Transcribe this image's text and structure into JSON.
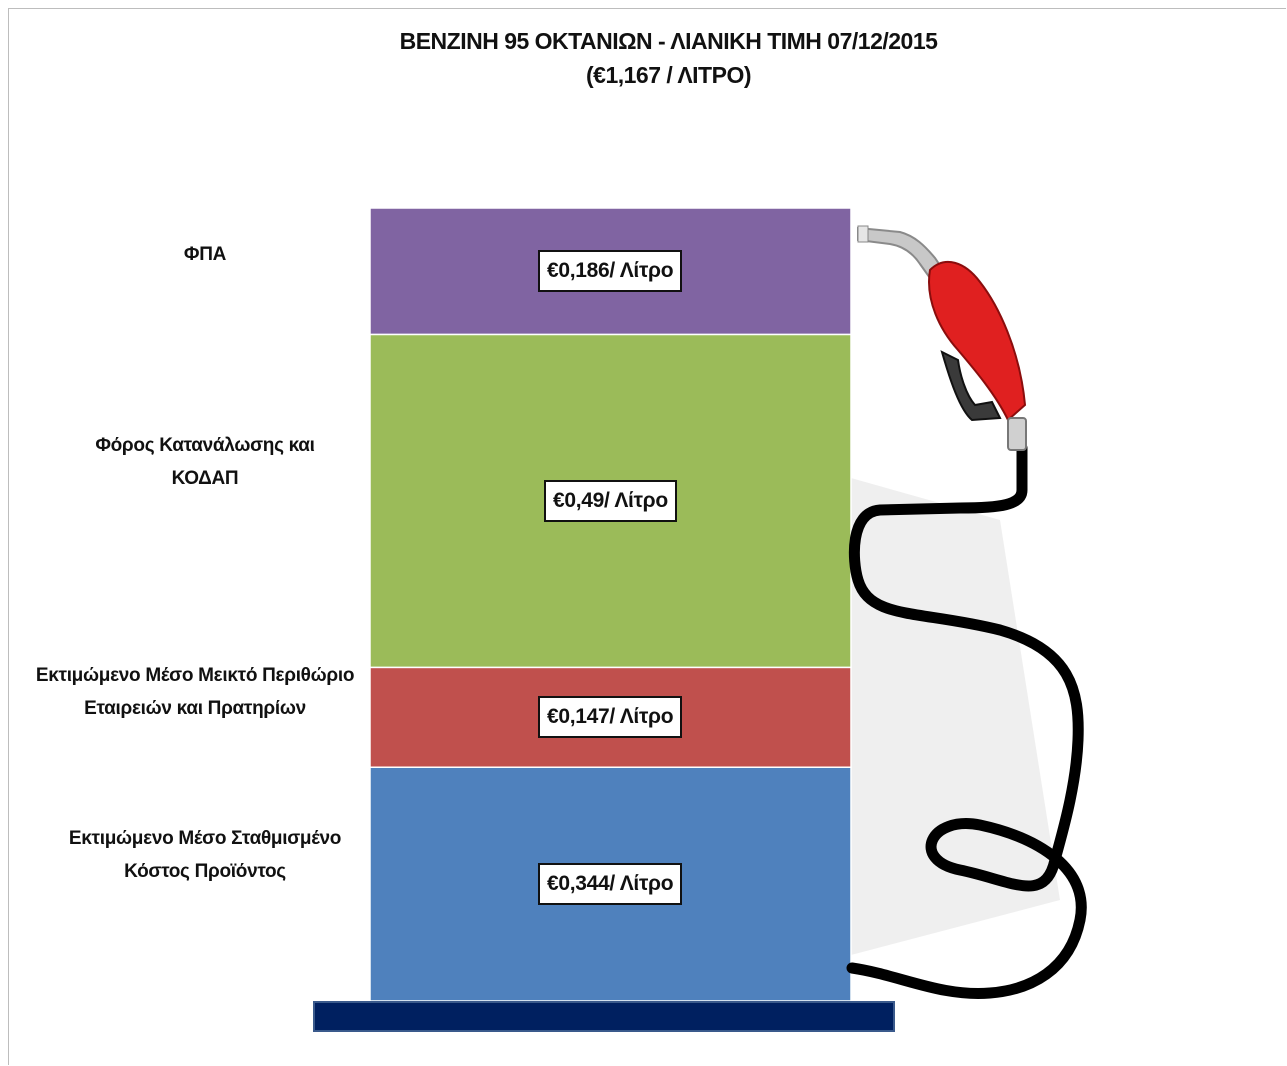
{
  "chart_data": {
    "type": "bar",
    "stacked": true,
    "title": "ΒΕΝΖΙΝΗ 95 ΟΚΤΑΝΙΩΝ - ΛΙΑΝΙΚΗ ΤΙΜΗ 07/12/2015",
    "subtitle": "(€1,167 / ΛΙΤΡΟ)",
    "total": 1.167,
    "segments": [
      {
        "key": "cost",
        "label_lines": [
          "Εκτιμώμενο Μέσο Σταθμισμένο",
          "Κόστος Προϊόντος"
        ],
        "value": 0.344,
        "value_label": "€0,344/ Λίτρο",
        "color": "#4f81bd"
      },
      {
        "key": "margin",
        "label_lines": [
          "Εκτιμώμενο Μέσο Μεικτό Περιθώριο",
          "Εταιρειών και Πρατηρίων"
        ],
        "value": 0.147,
        "value_label": "€0,147/ Λίτρο",
        "color": "#c0504d"
      },
      {
        "key": "tax",
        "label_lines": [
          "Φόρος Κατανάλωσης και",
          "ΚΟΔΑΠ"
        ],
        "value": 0.49,
        "value_label": "€0,49/ Λίτρο",
        "color": "#9bbb59"
      },
      {
        "key": "vat",
        "label_lines": [
          "ΦΠΑ"
        ],
        "value": 0.186,
        "value_label": "€0,186/ Λίτρο",
        "color": "#8064a2"
      }
    ],
    "base_color": "#002060",
    "nozzle_color": "#e02020",
    "hose_color": "#000000"
  }
}
